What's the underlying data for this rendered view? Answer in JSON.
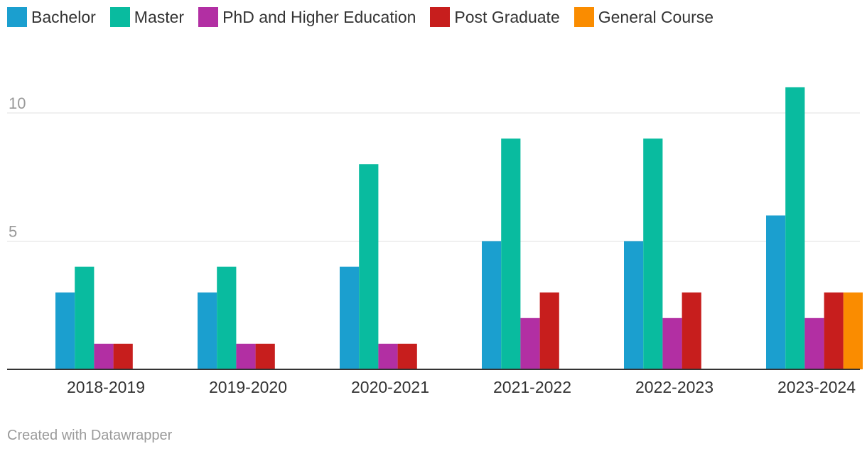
{
  "chart_data": {
    "type": "bar",
    "categories": [
      "2018-2019",
      "2019-2020",
      "2020-2021",
      "2021-2022",
      "2022-2023",
      "2023-2024"
    ],
    "series": [
      {
        "name": "Bachelor",
        "color": "#1b9fcf",
        "values": [
          3,
          3,
          4,
          5,
          5,
          6
        ]
      },
      {
        "name": "Master",
        "color": "#09bb9f",
        "values": [
          4,
          4,
          8,
          9,
          9,
          11
        ]
      },
      {
        "name": "PhD and Higher Education",
        "color": "#b22fa3",
        "values": [
          1,
          1,
          1,
          2,
          2,
          2
        ]
      },
      {
        "name": "Post Graduate",
        "color": "#c71e1d",
        "values": [
          1,
          1,
          1,
          3,
          3,
          3
        ]
      },
      {
        "name": "General Course",
        "color": "#fa8c00",
        "values": [
          0,
          0,
          0,
          0,
          0,
          3
        ]
      }
    ],
    "yticks": [
      5,
      10
    ],
    "ylim": [
      0,
      11
    ],
    "grid": true,
    "legend_position": "top-left"
  },
  "footer": "Created with Datawrapper"
}
